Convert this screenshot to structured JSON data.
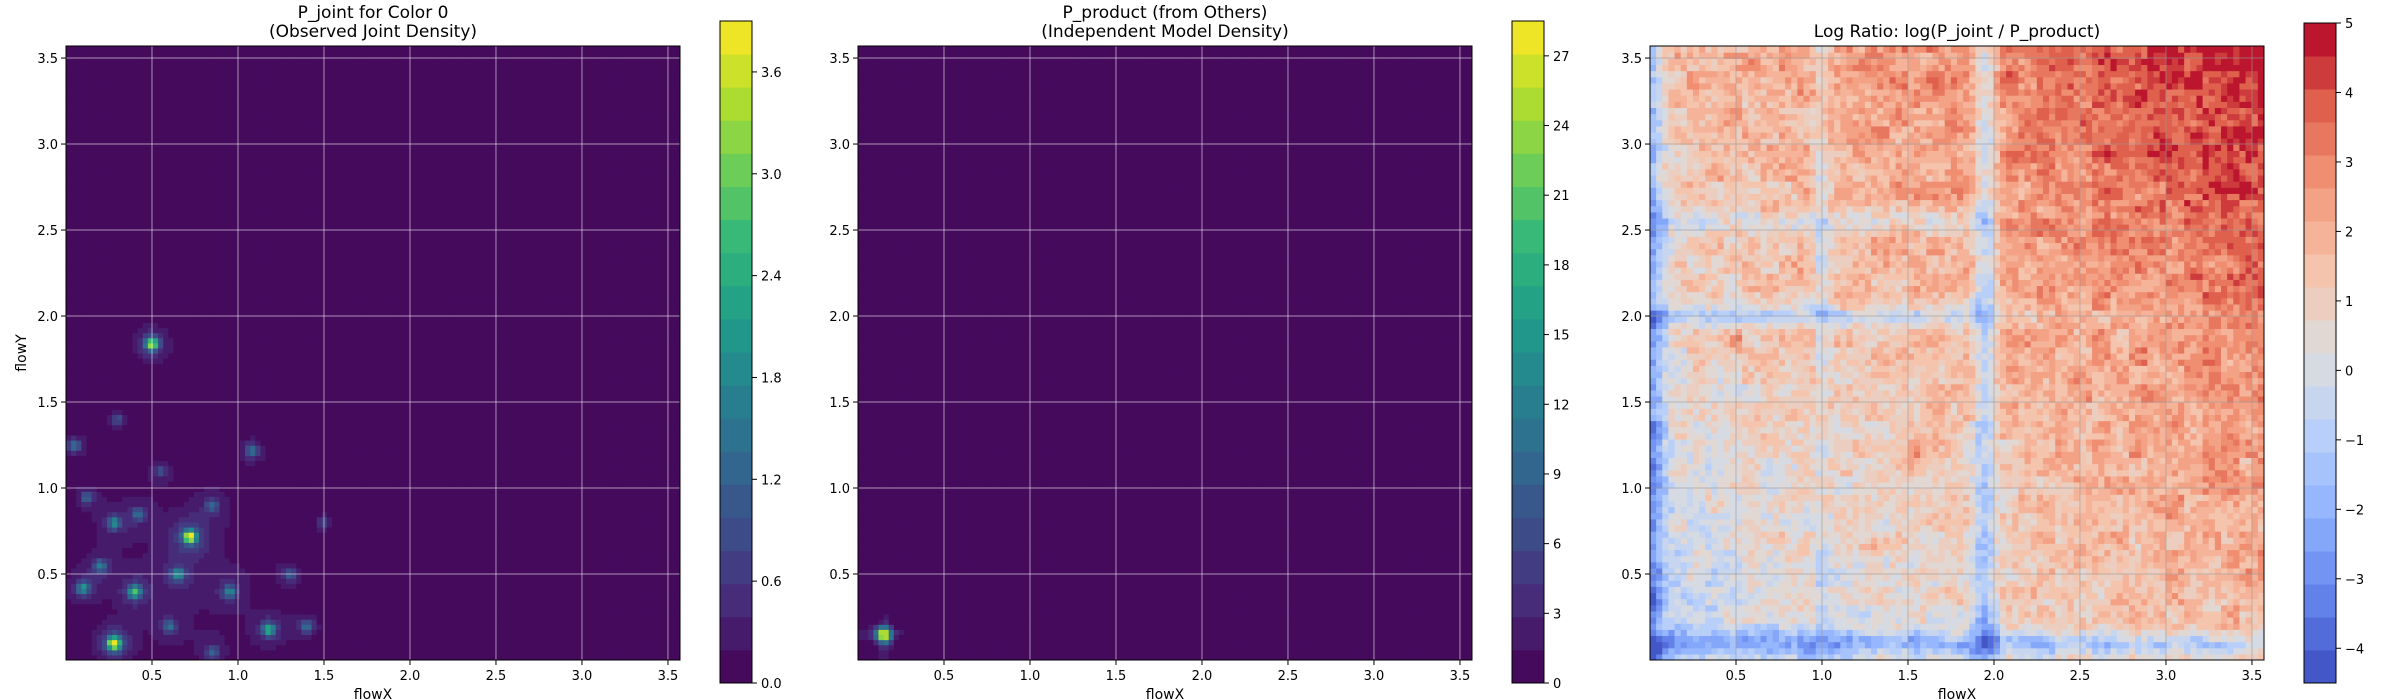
{
  "chart_data": [
    {
      "type": "heatmap",
      "title": "P_joint for Color 0\n(Observed Joint Density)",
      "xlabel": "flowX",
      "ylabel": "flowY",
      "xlim": [
        0.0,
        3.57
      ],
      "ylim": [
        0.0,
        3.57
      ],
      "xticks": [
        0.5,
        1.0,
        1.5,
        2.0,
        2.5,
        3.0,
        3.5
      ],
      "xtick_labels": [
        "0.5",
        "1.0",
        "1.5",
        "2.0",
        "2.5",
        "3.0",
        "3.5"
      ],
      "yticks": [
        0.5,
        1.0,
        1.5,
        2.0,
        2.5,
        3.0,
        3.5
      ],
      "ytick_labels": [
        "0.5",
        "1.0",
        "1.5",
        "2.0",
        "2.5",
        "3.0",
        "3.5"
      ],
      "grid": true,
      "colormap": "viridis",
      "colorbar": {
        "vmin": 0.0,
        "vmax": 3.9,
        "ticks": [
          0.0,
          0.6,
          1.2,
          1.8,
          2.4,
          3.0,
          3.6
        ],
        "tick_labels": [
          "0.0",
          "0.6",
          "1.2",
          "1.8",
          "2.4",
          "3.0",
          "3.6"
        ],
        "levels": 20
      },
      "hotspots": [
        {
          "x": 0.28,
          "y": 0.1,
          "value": 3.8
        },
        {
          "x": 0.72,
          "y": 0.72,
          "value": 3.4
        },
        {
          "x": 0.5,
          "y": 1.84,
          "value": 3.0
        },
        {
          "x": 0.4,
          "y": 0.4,
          "value": 2.2
        },
        {
          "x": 1.18,
          "y": 0.18,
          "value": 2.1
        },
        {
          "x": 0.1,
          "y": 0.42,
          "value": 1.7
        },
        {
          "x": 0.65,
          "y": 0.5,
          "value": 1.6
        },
        {
          "x": 0.28,
          "y": 0.8,
          "value": 1.5
        },
        {
          "x": 0.95,
          "y": 0.4,
          "value": 1.4
        },
        {
          "x": 0.2,
          "y": 0.55,
          "value": 1.3
        },
        {
          "x": 1.08,
          "y": 1.22,
          "value": 1.2
        },
        {
          "x": 0.05,
          "y": 1.25,
          "value": 1.2
        },
        {
          "x": 1.4,
          "y": 0.2,
          "value": 1.2
        },
        {
          "x": 0.6,
          "y": 0.2,
          "value": 1.1
        },
        {
          "x": 0.85,
          "y": 0.9,
          "value": 1.0
        },
        {
          "x": 0.12,
          "y": 0.95,
          "value": 1.0
        },
        {
          "x": 0.42,
          "y": 0.85,
          "value": 1.0
        },
        {
          "x": 1.3,
          "y": 0.5,
          "value": 0.9
        },
        {
          "x": 0.3,
          "y": 1.4,
          "value": 0.8
        },
        {
          "x": 1.5,
          "y": 0.8,
          "value": 0.6
        },
        {
          "x": 0.85,
          "y": 0.05,
          "value": 1.0
        },
        {
          "x": 0.55,
          "y": 1.1,
          "value": 0.7
        }
      ]
    },
    {
      "type": "heatmap",
      "title": "P_product (from Others)\n(Independent Model Density)",
      "xlabel": "flowX",
      "ylabel": "",
      "xlim": [
        0.0,
        3.57
      ],
      "ylim": [
        0.0,
        3.57
      ],
      "xticks": [
        0.5,
        1.0,
        1.5,
        2.0,
        2.5,
        3.0,
        3.5
      ],
      "xtick_labels": [
        "0.5",
        "1.0",
        "1.5",
        "2.0",
        "2.5",
        "3.0",
        "3.5"
      ],
      "yticks": [
        0.5,
        1.0,
        1.5,
        2.0,
        2.5,
        3.0,
        3.5
      ],
      "ytick_labels": [
        "0.5",
        "1.0",
        "1.5",
        "2.0",
        "2.5",
        "3.0",
        "3.5"
      ],
      "grid": true,
      "colormap": "viridis",
      "colorbar": {
        "vmin": 0,
        "vmax": 28.5,
        "ticks": [
          0,
          3,
          6,
          9,
          12,
          15,
          18,
          21,
          24,
          27
        ],
        "tick_labels": [
          "0",
          "3",
          "6",
          "9",
          "12",
          "15",
          "18",
          "21",
          "24",
          "27"
        ],
        "levels": 20
      },
      "peak": {
        "x": 0.15,
        "y": 0.15,
        "value": 27.5
      }
    },
    {
      "type": "heatmap",
      "title": "Log Ratio: log(P_joint / P_product)",
      "xlabel": "flowX",
      "ylabel": "",
      "xlim": [
        0.0,
        3.57
      ],
      "ylim": [
        0.0,
        3.57
      ],
      "xticks": [
        0.5,
        1.0,
        1.5,
        2.0,
        2.5,
        3.0,
        3.5
      ],
      "xtick_labels": [
        "0.5",
        "1.0",
        "1.5",
        "2.0",
        "2.5",
        "3.0",
        "3.5"
      ],
      "yticks": [
        0.5,
        1.0,
        1.5,
        2.0,
        2.5,
        3.0,
        3.5
      ],
      "ytick_labels": [
        "0.5",
        "1.0",
        "1.5",
        "2.0",
        "2.5",
        "3.0",
        "3.5"
      ],
      "grid": true,
      "colormap": "coolwarm",
      "colorbar": {
        "vmin": -4.5,
        "vmax": 5.0,
        "ticks": [
          -4,
          -3,
          -2,
          -1,
          0,
          1,
          2,
          3,
          4,
          5
        ],
        "tick_labels": [
          "−4",
          "−3",
          "−2",
          "−1",
          "0",
          "1",
          "2",
          "3",
          "4",
          "5"
        ],
        "levels": 20
      },
      "trend": "negative (blue) near flowX≈0 and flowX≈2.0 and along flowY≈2.0; positive (red) increasing toward upper-right, max ≈5 near (3.5, 3.5)"
    }
  ]
}
